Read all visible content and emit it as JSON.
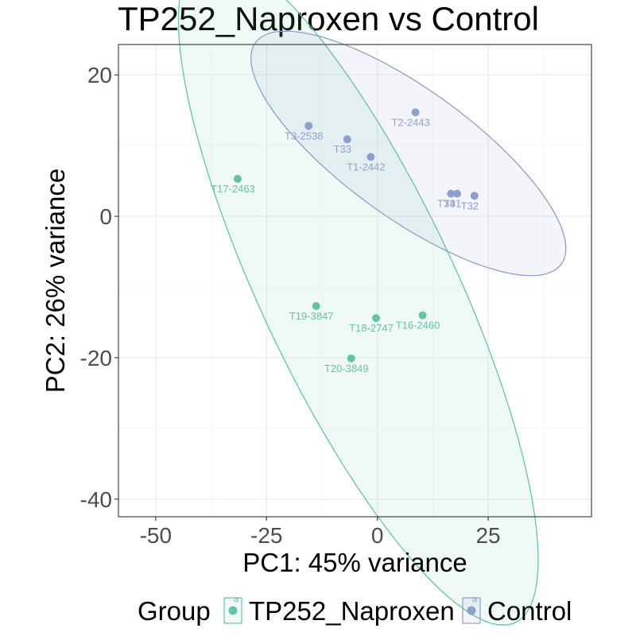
{
  "chart_data": {
    "type": "scatter",
    "title": "TP252_Naproxen vs Control",
    "xlabel": "PC1: 45% variance",
    "ylabel": "PC2: 26% variance",
    "xlim": [
      -58.4,
      48.3
    ],
    "ylim": [
      -42.5,
      24.3
    ],
    "xticks": [
      -50,
      -25,
      0,
      25
    ],
    "yticks": [
      20,
      0,
      -20,
      -40
    ],
    "xtick_labels": [
      "-50",
      "-25",
      "0",
      "25"
    ],
    "ytick_labels": [
      "20",
      "0",
      "-20",
      "-40"
    ],
    "grid": true,
    "legend": {
      "position": "bottom",
      "title": "Group",
      "key_glyph": "a"
    },
    "series": [
      {
        "name": "TP252_Naproxen",
        "color": "#66C2A5",
        "points": [
          {
            "label": "T17-2463",
            "x": -31.5,
            "y": 5.3
          },
          {
            "label": "T19-3847",
            "x": -13.8,
            "y": -12.7
          },
          {
            "label": "T18-2747",
            "x": -0.3,
            "y": -14.4
          },
          {
            "label": "T16-2460",
            "x": 10.2,
            "y": -14.0
          },
          {
            "label": "T20-3849",
            "x": -5.9,
            "y": -20.1
          }
        ],
        "ellipse": {
          "center": [
            -4.3,
            -10.4
          ],
          "semi_major": 59.4,
          "semi_minor": 19.2,
          "angle_deg": -50.5
        }
      },
      {
        "name": "Control",
        "color": "#8DA0CB",
        "points": [
          {
            "label": "T3-2538",
            "x": -15.5,
            "y": 12.8
          },
          {
            "label": "T33",
            "x": -6.8,
            "y": 10.9
          },
          {
            "label": "T1-2442",
            "x": -1.5,
            "y": 8.4
          },
          {
            "label": "T2-2443",
            "x": 8.6,
            "y": 14.7
          },
          {
            "label": "T34",
            "x": 16.6,
            "y": 3.2
          },
          {
            "label": "T31",
            "x": 18.0,
            "y": 3.2
          },
          {
            "label": "T32",
            "x": 21.9,
            "y": 2.9
          }
        ],
        "ellipse": {
          "center": [
            7.0,
            8.9
          ],
          "semi_major": 38.2,
          "semi_minor": 10.1,
          "angle_deg": -22.4
        }
      }
    ]
  }
}
